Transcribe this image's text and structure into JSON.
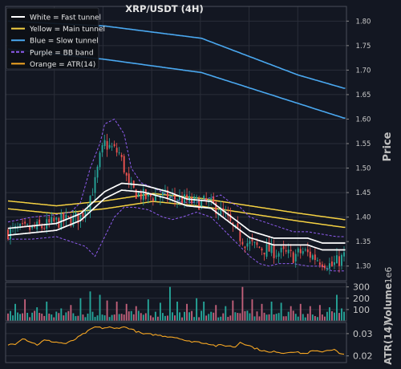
{
  "chart_data": {
    "type": "candlestick",
    "title": "XRP/USDT (4H)",
    "legend_position": "top-left",
    "legend": [
      {
        "label": "White = Fast tunnel",
        "color": "#ffffff",
        "style": "solid"
      },
      {
        "label": "Yellow = Main tunnel",
        "color": "#f5d142",
        "style": "solid"
      },
      {
        "label": "Blue = Slow tunnel",
        "color": "#4aa8f0",
        "style": "solid"
      },
      {
        "label": "Purple = BB band",
        "color": "#8f5cf0",
        "style": "dashed"
      },
      {
        "label": "Orange = ATR(14)",
        "color": "#f5a623",
        "style": "solid"
      }
    ],
    "colors": {
      "up": "#26a69a",
      "down": "#ef5350",
      "volume_up": "#26a69a",
      "volume_down": "#c2607a",
      "atr": "#f5a623",
      "grid": "#2a2e39",
      "axis_text": "#c8c8c8"
    },
    "price_panel": {
      "ylabel": "Price",
      "ylim": [
        1.27,
        1.83
      ],
      "yticks": [
        1.3,
        1.35,
        1.4,
        1.45,
        1.5,
        1.55,
        1.6,
        1.65,
        1.7,
        1.75,
        1.8
      ],
      "ytick_labels": [
        "1.30",
        "1.35",
        "1.40",
        "1.45",
        "1.50",
        "1.55",
        "1.60",
        "1.65",
        "1.70",
        "1.75",
        "1.80"
      ],
      "n_bars": 140,
      "candle_anchors": [
        [
          0,
          1.37
        ],
        [
          8,
          1.375
        ],
        [
          14,
          1.38
        ],
        [
          20,
          1.39
        ],
        [
          26,
          1.395
        ],
        [
          30,
          1.4
        ],
        [
          33,
          1.43
        ],
        [
          36,
          1.47
        ],
        [
          38,
          1.52
        ],
        [
          40,
          1.55
        ],
        [
          43,
          1.54
        ],
        [
          46,
          1.53
        ],
        [
          48,
          1.5
        ],
        [
          50,
          1.46
        ],
        [
          53,
          1.45
        ],
        [
          57,
          1.44
        ],
        [
          62,
          1.445
        ],
        [
          67,
          1.44
        ],
        [
          72,
          1.435
        ],
        [
          77,
          1.43
        ],
        [
          82,
          1.43
        ],
        [
          86,
          1.42
        ],
        [
          90,
          1.4
        ],
        [
          94,
          1.37
        ],
        [
          98,
          1.35
        ],
        [
          102,
          1.34
        ],
        [
          106,
          1.335
        ],
        [
          110,
          1.33
        ],
        [
          114,
          1.325
        ],
        [
          118,
          1.32
        ],
        [
          122,
          1.33
        ],
        [
          126,
          1.32
        ],
        [
          130,
          1.31
        ],
        [
          134,
          1.3
        ],
        [
          139,
          1.32
        ]
      ],
      "tunnels": {
        "fast": {
          "color": "#ffffff",
          "points": [
            [
              0,
              1.37
            ],
            [
              20,
              1.38
            ],
            [
              30,
              1.4
            ],
            [
              40,
              1.445
            ],
            [
              47,
              1.462
            ],
            [
              56,
              1.458
            ],
            [
              66,
              1.445
            ],
            [
              74,
              1.43
            ],
            [
              84,
              1.425
            ],
            [
              92,
              1.395
            ],
            [
              100,
              1.365
            ],
            [
              110,
              1.35
            ],
            [
              118,
              1.35
            ],
            [
              124,
              1.35
            ],
            [
              130,
              1.34
            ],
            [
              139,
              1.34
            ]
          ],
          "offset": 0.007
        },
        "main": {
          "color": "#f5d142",
          "points": [
            [
              0,
              1.425
            ],
            [
              20,
              1.415
            ],
            [
              40,
              1.425
            ],
            [
              60,
              1.44
            ],
            [
              80,
              1.43
            ],
            [
              100,
              1.415
            ],
            [
              120,
              1.4
            ],
            [
              139,
              1.387
            ]
          ],
          "offset": 0.008
        },
        "slow": {
          "color": "#4aa8f0",
          "lines": [
            [
              [
                0,
                1.8
              ],
              [
                40,
                1.79
              ],
              [
                80,
                1.765
              ],
              [
                120,
                1.69
              ],
              [
                139,
                1.663
              ]
            ],
            [
              [
                0,
                1.743
              ],
              [
                40,
                1.722
              ],
              [
                80,
                1.695
              ],
              [
                120,
                1.632
              ],
              [
                139,
                1.602
              ]
            ]
          ]
        }
      },
      "bb_band": {
        "color": "#8f5cf0",
        "upper": [
          [
            0,
            1.39
          ],
          [
            10,
            1.4
          ],
          [
            20,
            1.405
          ],
          [
            26,
            1.41
          ],
          [
            30,
            1.43
          ],
          [
            34,
            1.5
          ],
          [
            38,
            1.55
          ],
          [
            40,
            1.59
          ],
          [
            44,
            1.6
          ],
          [
            48,
            1.57
          ],
          [
            51,
            1.5
          ],
          [
            55,
            1.47
          ],
          [
            60,
            1.46
          ],
          [
            64,
            1.45
          ],
          [
            68,
            1.44
          ],
          [
            72,
            1.43
          ],
          [
            78,
            1.43
          ],
          [
            84,
            1.44
          ],
          [
            88,
            1.445
          ],
          [
            92,
            1.43
          ],
          [
            96,
            1.42
          ],
          [
            100,
            1.4
          ],
          [
            106,
            1.39
          ],
          [
            112,
            1.38
          ],
          [
            118,
            1.37
          ],
          [
            124,
            1.37
          ],
          [
            130,
            1.365
          ],
          [
            136,
            1.36
          ],
          [
            139,
            1.36
          ]
        ],
        "lower": [
          [
            0,
            1.355
          ],
          [
            10,
            1.355
          ],
          [
            20,
            1.36
          ],
          [
            26,
            1.35
          ],
          [
            32,
            1.34
          ],
          [
            36,
            1.32
          ],
          [
            40,
            1.36
          ],
          [
            44,
            1.4
          ],
          [
            48,
            1.42
          ],
          [
            52,
            1.42
          ],
          [
            58,
            1.415
          ],
          [
            64,
            1.4
          ],
          [
            68,
            1.395
          ],
          [
            72,
            1.4
          ],
          [
            78,
            1.41
          ],
          [
            84,
            1.4
          ],
          [
            88,
            1.38
          ],
          [
            92,
            1.36
          ],
          [
            96,
            1.34
          ],
          [
            100,
            1.32
          ],
          [
            104,
            1.305
          ],
          [
            108,
            1.3
          ],
          [
            112,
            1.305
          ],
          [
            118,
            1.305
          ],
          [
            124,
            1.3
          ],
          [
            130,
            1.3
          ],
          [
            134,
            1.29
          ],
          [
            139,
            1.29
          ]
        ]
      }
    },
    "volume_panel": {
      "ylabel": "Volume",
      "unit_label": "1e6",
      "ylim": [
        0,
        340
      ],
      "yticks": [
        100,
        200,
        300
      ],
      "ytick_labels": [
        "100",
        "200",
        "300"
      ],
      "base_level": 60,
      "spikes": [
        [
          3,
          150
        ],
        [
          7,
          190
        ],
        [
          12,
          120
        ],
        [
          16,
          170
        ],
        [
          22,
          110
        ],
        [
          26,
          140
        ],
        [
          30,
          200
        ],
        [
          34,
          260
        ],
        [
          38,
          230
        ],
        [
          41,
          180
        ],
        [
          45,
          170
        ],
        [
          49,
          150
        ],
        [
          53,
          130
        ],
        [
          58,
          190
        ],
        [
          63,
          160
        ],
        [
          67,
          300
        ],
        [
          70,
          170
        ],
        [
          74,
          150
        ],
        [
          78,
          200
        ],
        [
          81,
          170
        ],
        [
          86,
          140
        ],
        [
          90,
          130
        ],
        [
          93,
          180
        ],
        [
          97,
          300
        ],
        [
          101,
          190
        ],
        [
          105,
          150
        ],
        [
          109,
          170
        ],
        [
          113,
          160
        ],
        [
          117,
          130
        ],
        [
          121,
          150
        ],
        [
          125,
          130
        ],
        [
          129,
          140
        ],
        [
          133,
          120
        ],
        [
          136,
          230
        ],
        [
          138,
          110
        ]
      ]
    },
    "atr_panel": {
      "ylabel": "ATR(14)",
      "ylim": [
        0.017,
        0.035
      ],
      "yticks": [
        0.02,
        0.03
      ],
      "ytick_labels": [
        "0.02",
        "0.03"
      ],
      "points": [
        [
          0,
          0.025
        ],
        [
          3,
          0.0255
        ],
        [
          6,
          0.028
        ],
        [
          9,
          0.0265
        ],
        [
          12,
          0.025
        ],
        [
          15,
          0.027
        ],
        [
          18,
          0.0265
        ],
        [
          21,
          0.026
        ],
        [
          24,
          0.0255
        ],
        [
          27,
          0.027
        ],
        [
          30,
          0.029
        ],
        [
          33,
          0.031
        ],
        [
          36,
          0.033
        ],
        [
          39,
          0.0325
        ],
        [
          42,
          0.0328
        ],
        [
          44,
          0.0322
        ],
        [
          47,
          0.033
        ],
        [
          50,
          0.0325
        ],
        [
          53,
          0.031
        ],
        [
          56,
          0.0298
        ],
        [
          60,
          0.0296
        ],
        [
          64,
          0.029
        ],
        [
          68,
          0.0285
        ],
        [
          71,
          0.028
        ],
        [
          74,
          0.0265
        ],
        [
          77,
          0.0265
        ],
        [
          80,
          0.026
        ],
        [
          83,
          0.0255
        ],
        [
          86,
          0.0245
        ],
        [
          88,
          0.0248
        ],
        [
          91,
          0.0245
        ],
        [
          94,
          0.024
        ],
        [
          96,
          0.0262
        ],
        [
          99,
          0.025
        ],
        [
          102,
          0.0235
        ],
        [
          105,
          0.0225
        ],
        [
          108,
          0.0215
        ],
        [
          111,
          0.022
        ],
        [
          114,
          0.0212
        ],
        [
          117,
          0.022
        ],
        [
          120,
          0.0215
        ],
        [
          123,
          0.021
        ],
        [
          126,
          0.0222
        ],
        [
          129,
          0.0218
        ],
        [
          132,
          0.0225
        ],
        [
          135,
          0.023
        ],
        [
          137,
          0.021
        ],
        [
          139,
          0.0205
        ]
      ]
    }
  }
}
